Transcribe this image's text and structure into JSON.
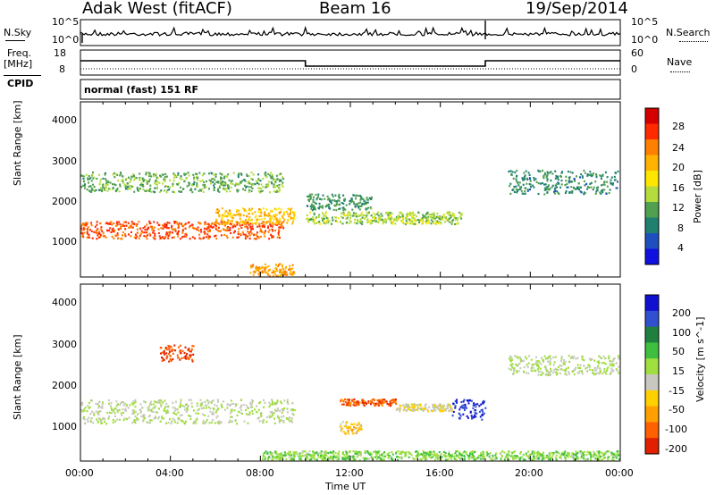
{
  "header": {
    "station": "Adak West (fitACF)",
    "beam": "Beam 16",
    "date": "19/Sep/2014"
  },
  "noise_panel": {
    "left_label": "N.Sky",
    "right_label": "N.Search",
    "scale_top": "10^5",
    "scale_bottom": "10^0"
  },
  "freq_panel": {
    "left_label_1": "Freq.",
    "left_label_2": "[MHz]",
    "cpid_label": "CPID",
    "right_label": "Nave",
    "ticks_left": [
      "18",
      "8"
    ],
    "ticks_right": [
      "60",
      "0"
    ],
    "freq_segments": [
      {
        "from": 0.0,
        "to": 10.0,
        "mhz": 14
      },
      {
        "from": 10.0,
        "to": 18.0,
        "mhz": 11
      },
      {
        "from": 18.0,
        "to": 24.0,
        "mhz": 14
      }
    ]
  },
  "cpid_text": "normal (fast) 151 RF",
  "x_axis": {
    "ticks": [
      "00:00",
      "04:00",
      "08:00",
      "12:00",
      "16:00",
      "20:00",
      "00:00"
    ],
    "title": "Time UT"
  },
  "y_axis": {
    "ticks": [
      "4000",
      "3000",
      "2000",
      "1000"
    ],
    "title": "Slant Range [km]"
  },
  "power_colorbar": {
    "title": "Power [dB]",
    "ticks": [
      "28",
      "24",
      "20",
      "16",
      "12",
      "8",
      "4"
    ],
    "colors": [
      "#d40000",
      "#ff2a00",
      "#ff7f00",
      "#ffb300",
      "#ffe600",
      "#b4dc3c",
      "#50a050",
      "#208070",
      "#1f4fbf",
      "#1010e0"
    ]
  },
  "velocity_colorbar": {
    "title": "Velocity [m s^-1]",
    "ticks": [
      "200",
      "100",
      "50",
      "15",
      "-15",
      "-50",
      "-100",
      "-200"
    ],
    "colors": [
      "#1010d0",
      "#3050d0",
      "#1f7f3f",
      "#3fbf3f",
      "#9fdf3f",
      "#c8c8c0",
      "#ffd000",
      "#ffa000",
      "#ff6000",
      "#e02000"
    ]
  },
  "chart_data": [
    {
      "type": "heatmap",
      "title": "Power",
      "xlabel": "Time UT",
      "ylabel": "Slant Range [km]",
      "xlim": [
        0,
        24
      ],
      "ylim": [
        200,
        4600
      ],
      "z_label": "Power [dB]",
      "zlim": [
        0,
        32
      ],
      "regions": [
        {
          "t_start": 0.0,
          "t_end": 9.0,
          "range_center": 1400,
          "range_halfwidth": 220,
          "value": 26
        },
        {
          "t_start": 6.0,
          "t_end": 9.5,
          "range_center": 1750,
          "range_halfwidth": 200,
          "value": 20
        },
        {
          "t_start": 0.0,
          "t_end": 9.0,
          "range_center": 2600,
          "range_halfwidth": 250,
          "value": 12
        },
        {
          "t_start": 10.0,
          "t_end": 17.0,
          "range_center": 1700,
          "range_halfwidth": 150,
          "value": 14
        },
        {
          "t_start": 10.0,
          "t_end": 13.0,
          "range_center": 2100,
          "range_halfwidth": 200,
          "value": 10
        },
        {
          "t_start": 7.5,
          "t_end": 9.5,
          "range_center": 400,
          "range_halfwidth": 150,
          "value": 22
        },
        {
          "t_start": 19.0,
          "t_end": 24.0,
          "range_center": 2600,
          "range_halfwidth": 300,
          "value": 9
        }
      ]
    },
    {
      "type": "heatmap",
      "title": "Velocity",
      "xlabel": "Time UT",
      "ylabel": "Slant Range [km]",
      "xlim": [
        0,
        24
      ],
      "ylim": [
        200,
        4600
      ],
      "z_label": "Velocity [m s^-1]",
      "zlim": [
        -250,
        250
      ],
      "regions": [
        {
          "t_start": 0.0,
          "t_end": 9.5,
          "range_center": 1450,
          "range_halfwidth": 300,
          "value": 0
        },
        {
          "t_start": 3.5,
          "t_end": 5.0,
          "range_center": 2900,
          "range_halfwidth": 200,
          "value": -200
        },
        {
          "t_start": 11.5,
          "t_end": 14.0,
          "range_center": 1680,
          "range_halfwidth": 80,
          "value": -180
        },
        {
          "t_start": 14.0,
          "t_end": 16.5,
          "range_center": 1550,
          "range_halfwidth": 90,
          "value": -40
        },
        {
          "t_start": 16.5,
          "t_end": 18.0,
          "range_center": 1500,
          "range_halfwidth": 250,
          "value": 200
        },
        {
          "t_start": 11.5,
          "t_end": 12.5,
          "range_center": 1050,
          "range_halfwidth": 150,
          "value": -80
        },
        {
          "t_start": 8.0,
          "t_end": 24.0,
          "range_center": 350,
          "range_halfwidth": 120,
          "value": 40
        },
        {
          "t_start": 19.0,
          "t_end": 24.0,
          "range_center": 2600,
          "range_halfwidth": 250,
          "value": 0
        }
      ]
    }
  ]
}
